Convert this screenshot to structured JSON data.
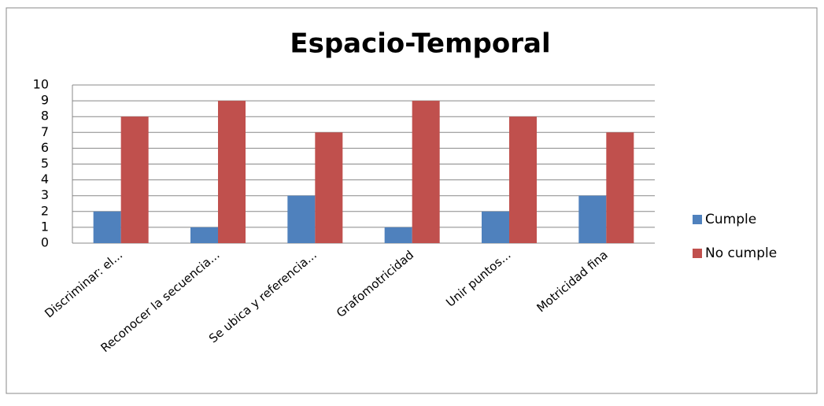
{
  "chart_data": {
    "type": "bar",
    "title": "Espacio-Temporal",
    "categories": [
      "Discriminar: el...",
      "Reconocer la secuencia...",
      "Se ubica y referencia...",
      "Grafomotricidad",
      "Unir puntos...",
      "Motricidad fina"
    ],
    "series": [
      {
        "name": "Cumple",
        "color": "#4f81bd",
        "values": [
          2,
          1,
          3,
          1,
          2,
          3
        ]
      },
      {
        "name": "No cumple",
        "color": "#c0504d",
        "values": [
          8,
          9,
          7,
          9,
          8,
          7
        ]
      }
    ],
    "ylim": [
      0,
      10
    ],
    "yticks": [
      0,
      1,
      2,
      3,
      4,
      5,
      6,
      7,
      8,
      9,
      10
    ],
    "grid": true,
    "legend": "right"
  }
}
